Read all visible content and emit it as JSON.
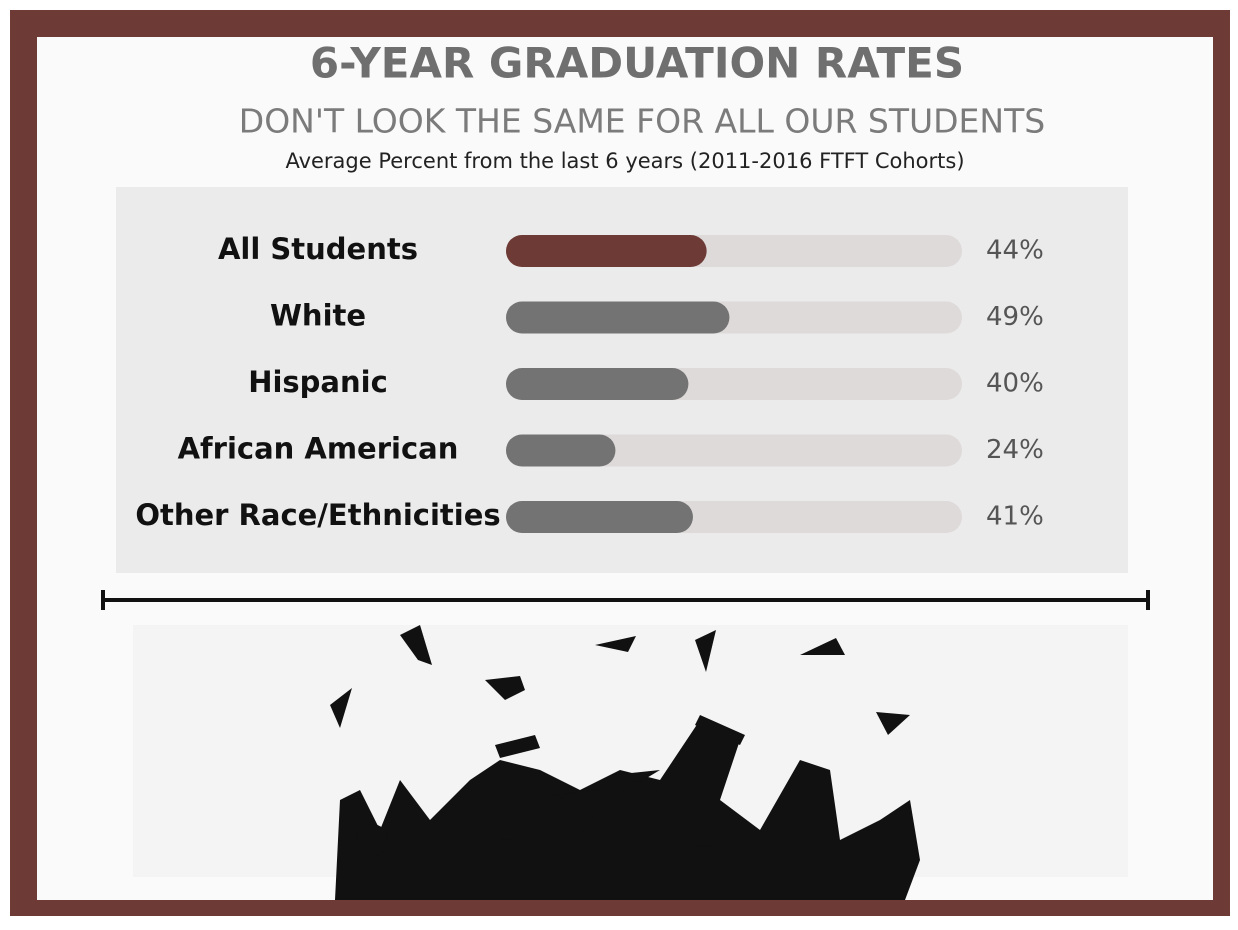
{
  "chart_data": {
    "type": "bar",
    "orientation": "horizontal",
    "title": "6-YEAR GRADUATION RATES",
    "subtitle": "DON'T LOOK THE SAME FOR ALL OUR STUDENTS",
    "note": "Average Percent from the last 6 years (2011-2016 FTFT Cohorts)",
    "categories": [
      "All Students",
      "White",
      "Hispanic",
      "African American",
      "Other Race/Ethnicities"
    ],
    "values": [
      44,
      49,
      40,
      24,
      41
    ],
    "value_labels": [
      "44%",
      "49%",
      "40%",
      "24%",
      "41%"
    ],
    "colors": [
      "#6e3a35",
      "#737373",
      "#737373",
      "#737373",
      "#737373"
    ],
    "xlim": [
      0,
      100
    ]
  }
}
